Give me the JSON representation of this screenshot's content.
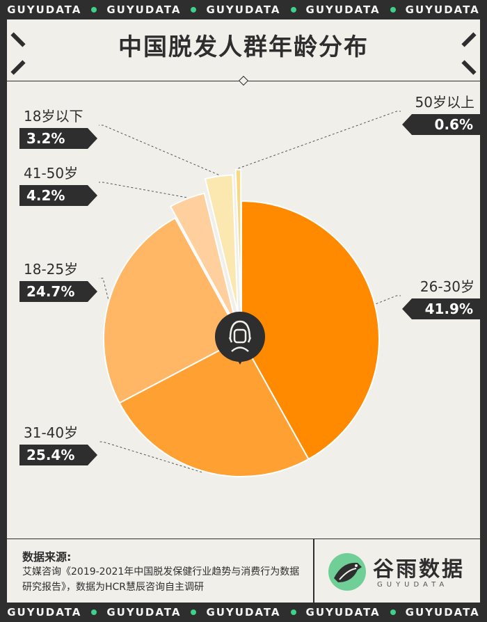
{
  "banner": {
    "text": "GUYUDATA"
  },
  "title": "中国脱发人群年龄分布",
  "chart_data": {
    "type": "pie",
    "title": "中国脱发人群年龄分布",
    "slices": [
      {
        "label": "26-30岁",
        "value": 41.9,
        "display": "41.9%",
        "color": "#ff8a00"
      },
      {
        "label": "31-40岁",
        "value": 25.4,
        "display": "25.4%",
        "color": "#ffa033"
      },
      {
        "label": "18-25岁",
        "value": 24.7,
        "display": "24.7%",
        "color": "#ffb766"
      },
      {
        "label": "41-50岁",
        "value": 4.2,
        "display": "4.2%",
        "color": "#ffd09e"
      },
      {
        "label": "18岁以下",
        "value": 3.2,
        "display": "3.2%",
        "color": "#fbe7b0"
      },
      {
        "label": "50岁以上",
        "value": 0.6,
        "display": "0.6%",
        "color": "#f9d980"
      }
    ]
  },
  "footer": {
    "source_heading": "数据来源:",
    "source_text": "艾媒咨询《2019-2021年中国脱发保健行业趋势与消费行为数据研究报告》，数据为HCR慧辰咨询自主调研",
    "brand_name": "谷雨数据",
    "brand_sub": "GUYUDATA"
  },
  "icons": {
    "center": "person-icon",
    "brand": "bird-logo-icon"
  }
}
